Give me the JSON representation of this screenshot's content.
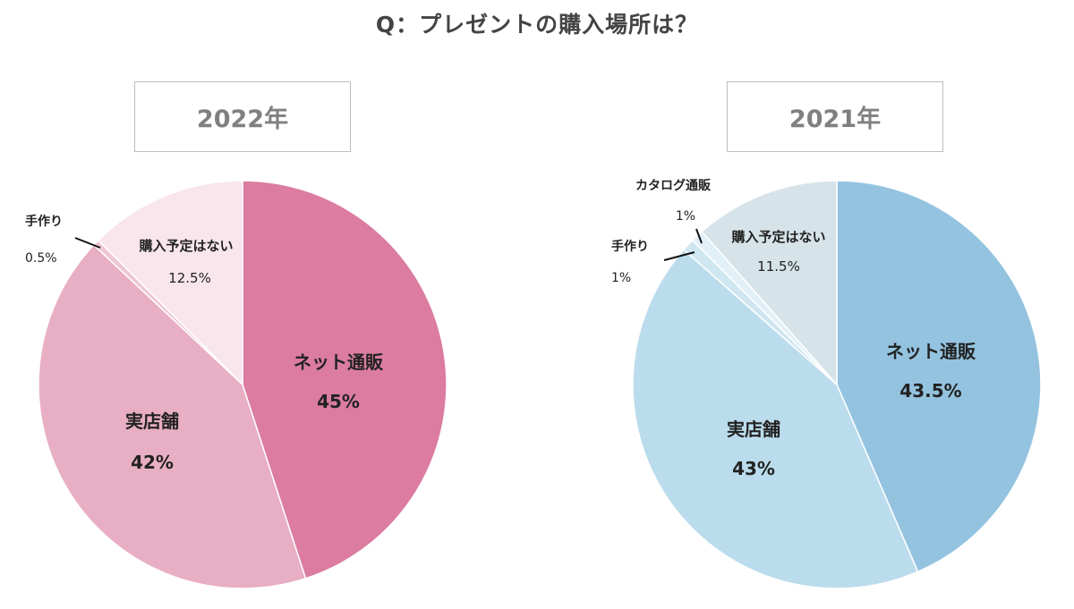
{
  "title": "Q：プレゼントの購入場所は？",
  "chart_data": [
    {
      "type": "pie",
      "title": "2022年",
      "slices": [
        {
          "label": "ネット通販",
          "value": 45,
          "value_label": "45%",
          "color": "#db7ca0"
        },
        {
          "label": "実店舗",
          "value": 42,
          "value_label": "42%",
          "color": "#e8aec4"
        },
        {
          "label": "手作り",
          "value": 0.5,
          "value_label": "0.5%",
          "color": "#eec6d4"
        },
        {
          "label": "購入予定はない",
          "value": 12.5,
          "value_label": "12.5%",
          "color": "#f8e6ec"
        }
      ]
    },
    {
      "type": "pie",
      "title": "2021年",
      "slices": [
        {
          "label": "ネット通販",
          "value": 43.5,
          "value_label": "43.5%",
          "color": "#94c3e0"
        },
        {
          "label": "実店舗",
          "value": 43,
          "value_label": "43%",
          "color": "#bbdcec"
        },
        {
          "label": "手作り",
          "value": 1,
          "value_label": "1%",
          "color": "#cfe6f1"
        },
        {
          "label": "カタログ通販",
          "value": 1,
          "value_label": "1%",
          "color": "#e1f0f6"
        },
        {
          "label": "購入予定はない",
          "value": 11.5,
          "value_label": "11.5%",
          "color": "#d6e3e8"
        }
      ]
    }
  ]
}
